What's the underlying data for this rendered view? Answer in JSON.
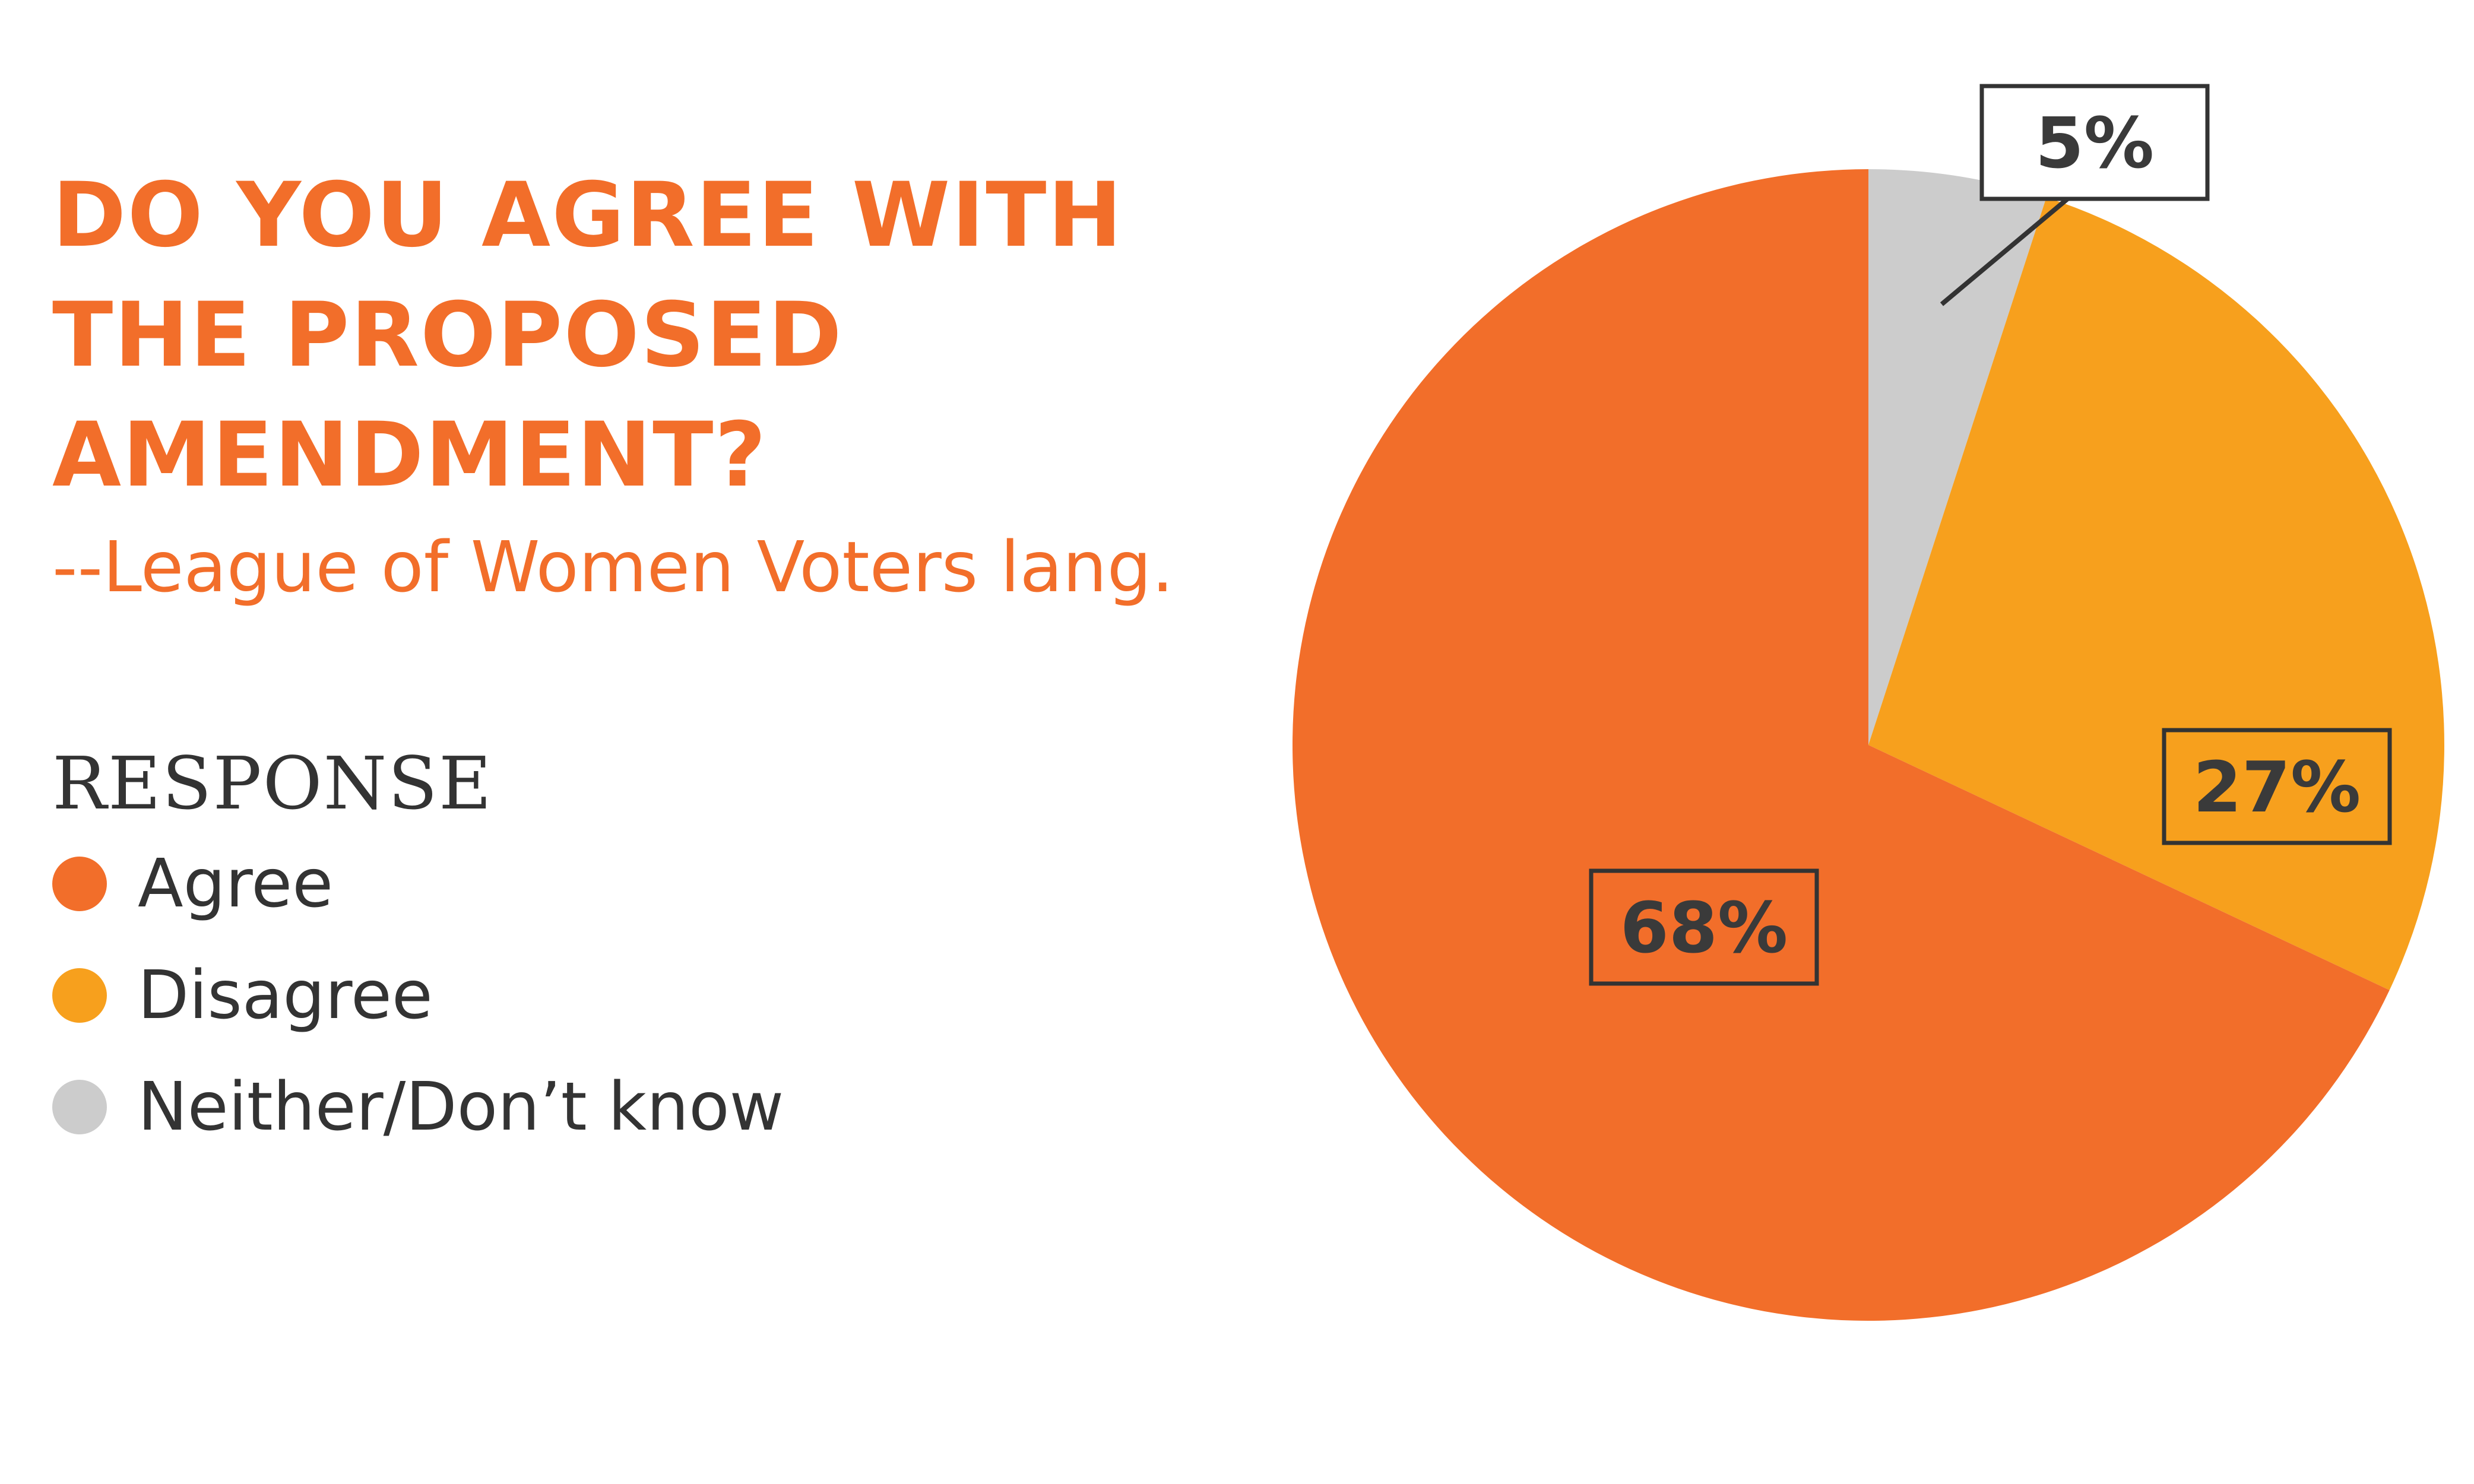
{
  "title_lines": [
    "DO YOU AGREE WITH",
    "THE PROPOSED",
    "AMENDMENT?"
  ],
  "subtitle": "--League of Women Voters lang.",
  "legend_title": "RESPONSE",
  "colors": {
    "title": "#f26e2a",
    "text": "#333333"
  },
  "chart_data": {
    "type": "pie",
    "title": "DO YOU AGREE WITH THE PROPOSED AMENDMENT?",
    "subtitle": "--League of Women Voters lang.",
    "legend_title": "RESPONSE",
    "legend_placement": "left",
    "categories": [
      "Agree",
      "Disagree",
      "Neither/Don’t know"
    ],
    "values": [
      68,
      27,
      5
    ],
    "labels": [
      "68%",
      "27%",
      "5%"
    ],
    "colors": [
      "#f26e2a",
      "#f7a01d",
      "#cccccc"
    ]
  }
}
